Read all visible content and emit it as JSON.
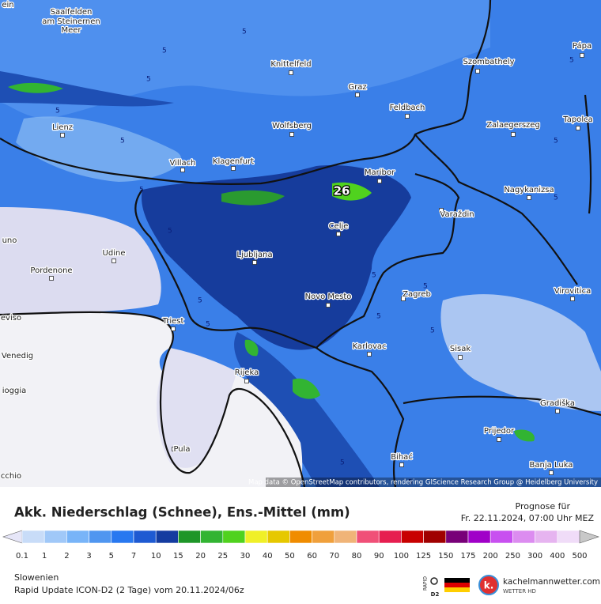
{
  "map": {
    "cities": [
      "ein",
      "Saalfelden",
      "am Steinernen",
      "Meer",
      "Knittelfeld",
      "Szombathely",
      "Pápa",
      "Graz",
      "Feldbach",
      "Lienz",
      "Wolfsberg",
      "Zalaegerszeg",
      "Tapolca",
      "Villach",
      "Klagenfurt",
      "Maribor",
      "Nagykanizsa",
      "Varaždin",
      "Celje",
      "uno",
      "Udine",
      "Ljubljana",
      "Pordenone",
      "Novo Mesto",
      "Zagreb",
      "Virovitica",
      "eviso",
      "Triest",
      "Karlovac",
      "Sisak",
      "Venedig",
      "Rijeka",
      "ioggia",
      "Gradiška",
      "Prijedor",
      "Pula",
      "Bihać",
      "Banja Luka",
      "cchio"
    ],
    "contour_labels": [
      "5",
      "5",
      "5",
      "5",
      "5",
      "5",
      "5",
      "5",
      "5",
      "5",
      "5",
      "5",
      "5",
      "5",
      "5",
      "5",
      "5",
      "5"
    ],
    "max_value": "26",
    "attribution": "Map data © OpenStreetMap contributors, rendering GIScience Research Group @ Heidelberg University"
  },
  "footer": {
    "title": "Akk. Niederschlag (Schnee), Ens.-Mittel (mm)",
    "forecast_label": "Prognose für",
    "forecast_time": "Fr. 22.11.2024, 07:00 Uhr MEZ",
    "legend_labels": [
      "0.1",
      "1",
      "2",
      "3",
      "5",
      "7",
      "10",
      "15",
      "20",
      "25",
      "30",
      "40",
      "50",
      "60",
      "70",
      "80",
      "90",
      "100",
      "125",
      "150",
      "175",
      "200",
      "250",
      "300",
      "400",
      "500"
    ],
    "legend_colors": [
      "#e6e6f8",
      "#c8dcf8",
      "#a0c8f8",
      "#78b4f8",
      "#5096f0",
      "#2878f0",
      "#1e5ad2",
      "#143ca0",
      "#1e9628",
      "#32b432",
      "#50d21e",
      "#f0f028",
      "#e6c800",
      "#f08c00",
      "#f0a03c",
      "#f0b478",
      "#f05078",
      "#e61e50",
      "#c80000",
      "#a00000",
      "#780078",
      "#a000c8",
      "#c850f0",
      "#dc8cf0",
      "#e6b4f0",
      "#f0dcf8",
      "#c8c8c8"
    ],
    "region": "Slowenien",
    "model_run": "Rapid Update ICON-D2 (2 Tage) vom 20.11.2024/06z",
    "rapid": "RAPID",
    "d2": "D2",
    "brand": "kachelmannwetter.com",
    "brand_sub": "WETTER HD"
  }
}
